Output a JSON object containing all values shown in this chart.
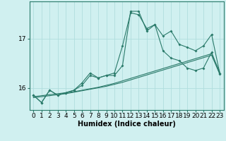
{
  "title": "",
  "xlabel": "Humidex (Indice chaleur)",
  "background_color": "#d0f0f0",
  "grid_color": "#b0dede",
  "line_color": "#2a7a6a",
  "x_values": [
    0,
    1,
    2,
    3,
    4,
    5,
    6,
    7,
    8,
    9,
    10,
    11,
    12,
    13,
    14,
    15,
    16,
    17,
    18,
    19,
    20,
    21,
    22,
    23
  ],
  "line1": [
    15.85,
    15.7,
    15.95,
    15.85,
    15.9,
    15.95,
    16.05,
    16.25,
    16.2,
    16.25,
    16.3,
    16.85,
    17.52,
    17.48,
    17.2,
    17.28,
    17.05,
    17.15,
    16.88,
    16.82,
    16.75,
    16.85,
    17.08,
    16.3
  ],
  "line2": [
    15.85,
    15.7,
    15.95,
    15.85,
    15.9,
    15.95,
    16.1,
    16.3,
    16.2,
    16.25,
    16.25,
    16.45,
    17.55,
    17.55,
    17.15,
    17.28,
    16.75,
    16.6,
    16.55,
    16.4,
    16.35,
    16.4,
    16.72,
    16.28
  ],
  "line3": [
    15.82,
    15.84,
    15.86,
    15.88,
    15.9,
    15.92,
    15.95,
    15.98,
    16.01,
    16.05,
    16.09,
    16.14,
    16.19,
    16.24,
    16.29,
    16.34,
    16.39,
    16.44,
    16.49,
    16.54,
    16.59,
    16.64,
    16.69,
    16.32
  ],
  "line4": [
    15.8,
    15.82,
    15.84,
    15.86,
    15.88,
    15.91,
    15.94,
    15.97,
    16.0,
    16.03,
    16.07,
    16.11,
    16.16,
    16.21,
    16.26,
    16.31,
    16.36,
    16.41,
    16.46,
    16.51,
    16.56,
    16.61,
    16.66,
    16.28
  ],
  "yticks": [
    16,
    17
  ],
  "ylim": [
    15.55,
    17.75
  ],
  "xlim": [
    -0.5,
    23.5
  ],
  "xlabel_fontsize": 7,
  "tick_fontsize": 6.5
}
